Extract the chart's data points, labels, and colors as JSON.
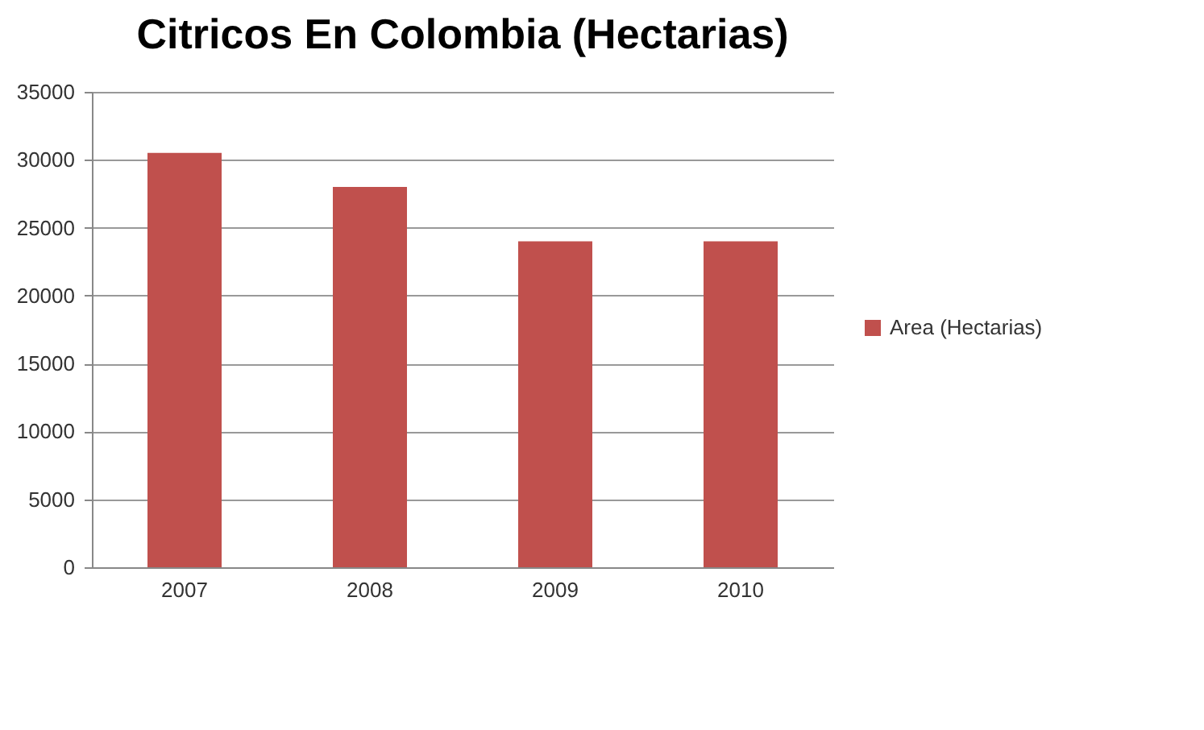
{
  "chart_data": {
    "type": "bar",
    "title": "Citricos En Colombia (Hectarias)",
    "categories": [
      "2007",
      "2008",
      "2009",
      "2010"
    ],
    "series": [
      {
        "name": "Area (Hectarias)",
        "color": "#c0504d",
        "values": [
          30500,
          28000,
          24000,
          24000
        ]
      }
    ],
    "ylim": [
      0,
      35000
    ],
    "yticks": [
      0,
      5000,
      10000,
      15000,
      20000,
      25000,
      30000,
      35000
    ],
    "grid": "y",
    "legend": "right"
  }
}
